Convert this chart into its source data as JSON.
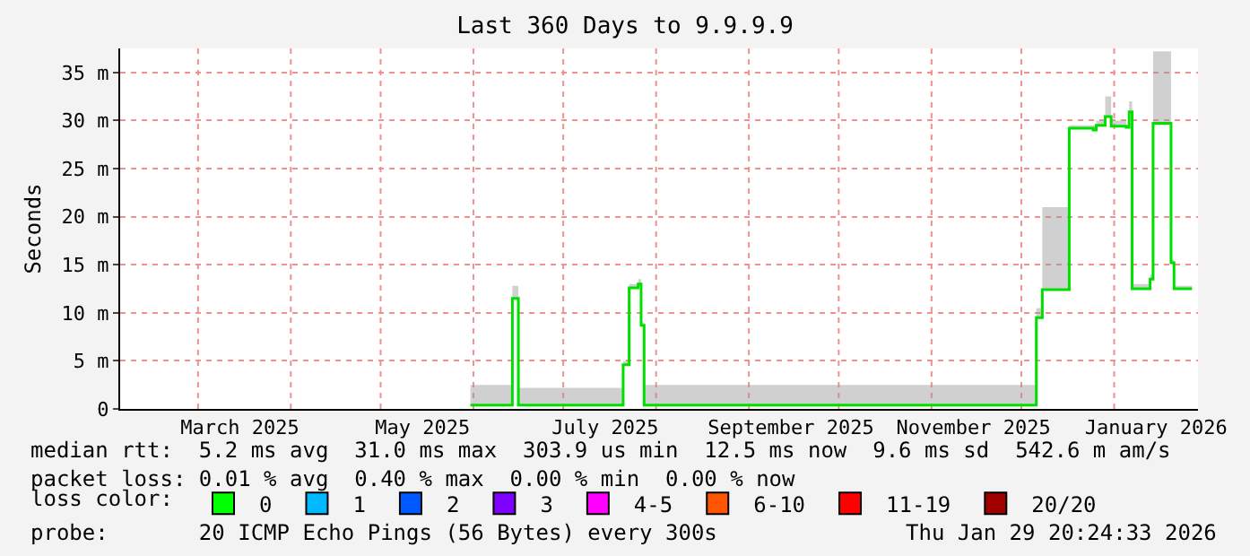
{
  "chart_data": {
    "type": "step",
    "title": "Last 360 Days to 9.9.9.9",
    "ylabel": "Seconds",
    "x": [
      "2025-05-31",
      "2025-06-14",
      "2025-06-16",
      "2025-07-21",
      "2025-07-23",
      "2025-07-26",
      "2025-07-27",
      "2025-07-28",
      "2025-12-06",
      "2025-12-08",
      "2025-12-17",
      "2025-12-25",
      "2025-12-26",
      "2025-12-29",
      "2025-12-31",
      "2026-01-05",
      "2026-01-06",
      "2026-01-07",
      "2026-01-13",
      "2026-01-14",
      "2026-01-20",
      "2026-01-21",
      "2026-01-27"
    ],
    "series": [
      {
        "color": "#00e000",
        "values": [
          0.4,
          11.5,
          0.4,
          4.6,
          12.6,
          13,
          8.7,
          0.4,
          9.5,
          12.4,
          29.2,
          29,
          29.5,
          30.4,
          29.4,
          29.3,
          30.9,
          12.5,
          13.5,
          29.7,
          15.2,
          12.5,
          12.5
        ],
        "lower": [
          0.4,
          11.5,
          0.4,
          4.6,
          12.6,
          13,
          8.7,
          0.4,
          9.5,
          12.4,
          29.2,
          29,
          29.5,
          30.4,
          29.4,
          29.3,
          30.9,
          12.5,
          13.5,
          29.7,
          15.2,
          12.5,
          12.5
        ],
        "upper": [
          2.5,
          12.8,
          2.2,
          5,
          13,
          13.5,
          9,
          2.5,
          10.5,
          21,
          29.5,
          29.5,
          30,
          32.5,
          30,
          29.5,
          32,
          13,
          14,
          37.2,
          15.5,
          12.8,
          12.8
        ]
      },
      {
        "type": "bar",
        "name": "0",
        "color": "#00ff00",
        "values": [
          null,
          null,
          null,
          null,
          null,
          null,
          null,
          null,
          null,
          null,
          null,
          null,
          null,
          null,
          null,
          null,
          null,
          null,
          null,
          null,
          null,
          null,
          null
        ]
      },
      {
        "type": "bar",
        "name": "1",
        "color": "#00b8ff",
        "values": [
          null,
          null,
          null,
          null,
          null,
          null,
          null,
          null,
          null,
          null,
          null,
          null,
          null,
          null,
          null,
          null,
          null,
          null,
          null,
          null,
          null,
          null,
          null
        ]
      },
      {
        "type": "bar",
        "name": "2",
        "color": "#0059ff",
        "values": [
          null,
          null,
          null,
          null,
          null,
          null,
          null,
          null,
          null,
          null,
          null,
          null,
          null,
          null,
          null,
          null,
          null,
          null,
          null,
          null,
          null,
          null,
          null
        ]
      },
      {
        "type": "bar",
        "name": "3",
        "color": "#7e00ff",
        "values": [
          null,
          null,
          null,
          null,
          null,
          null,
          null,
          null,
          null,
          null,
          null,
          null,
          null,
          null,
          null,
          null,
          null,
          null,
          null,
          null,
          null,
          null,
          null
        ]
      },
      {
        "type": "bar",
        "name": "4-5",
        "color": "#ff00ff",
        "values": [
          null,
          null,
          null,
          null,
          null,
          null,
          null,
          null,
          null,
          null,
          null,
          null,
          null,
          null,
          null,
          null,
          null,
          null,
          null,
          null,
          null,
          null,
          null
        ]
      },
      {
        "type": "bar",
        "name": "6-10",
        "color": "#ff5500",
        "values": [
          null,
          null,
          null,
          null,
          null,
          null,
          null,
          null,
          null,
          null,
          null,
          null,
          null,
          null,
          null,
          null,
          null,
          null,
          null,
          null,
          null,
          null,
          null
        ]
      },
      {
        "type": "bar",
        "name": "11-19",
        "color": "#ff0000",
        "values": [
          null,
          null,
          null,
          null,
          null,
          null,
          null,
          null,
          null,
          null,
          null,
          null,
          null,
          null,
          null,
          null,
          null,
          null,
          null,
          null,
          null,
          null,
          null
        ]
      },
      {
        "type": "bar",
        "name": "20/20",
        "color": "#a10000",
        "values": [
          null,
          null,
          null,
          null,
          null,
          null,
          null,
          null,
          null,
          null,
          null,
          null,
          null,
          null,
          null,
          null,
          null,
          null,
          null,
          null,
          null,
          null,
          null
        ]
      }
    ],
    "legend_title": "loss color:",
    "legend": "bottom",
    "xlim": [
      "2025-02-03",
      "2026-01-29"
    ],
    "xticks": [
      {
        "value": "2025-03-01",
        "label": null
      },
      {
        "value": "2025-03-15",
        "label": "March 2025"
      },
      {
        "value": "2025-04-01",
        "label": null
      },
      {
        "value": "2025-05-01",
        "label": null
      },
      {
        "value": "2025-05-15",
        "label": "May 2025"
      },
      {
        "value": "2025-06-01",
        "label": null
      },
      {
        "value": "2025-07-01",
        "label": null
      },
      {
        "value": "2025-07-15",
        "label": "July 2025"
      },
      {
        "value": "2025-08-01",
        "label": null
      },
      {
        "value": "2025-09-01",
        "label": null
      },
      {
        "value": "2025-09-15",
        "label": "September 2025"
      },
      {
        "value": "2025-10-01",
        "label": null
      },
      {
        "value": "2025-11-01",
        "label": null
      },
      {
        "value": "2025-11-15",
        "label": "November 2025"
      },
      {
        "value": "2025-12-01",
        "label": null
      },
      {
        "value": "2026-01-01",
        "label": null
      },
      {
        "value": "2026-01-15",
        "label": "January 2026"
      }
    ],
    "ylim": [
      0,
      37.5
    ],
    "yticks": [
      0,
      {
        "value": 5,
        "label": "5 m"
      },
      {
        "value": 10,
        "label": "10 m"
      },
      {
        "value": 15,
        "label": "15 m"
      },
      {
        "value": 20,
        "label": "20 m"
      },
      {
        "value": 25,
        "label": "25 m"
      },
      {
        "value": 30,
        "label": "30 m"
      },
      {
        "value": 35,
        "label": "35 m"
      }
    ],
    "grid": true,
    "marker": "none",
    "line_style": "solid",
    "annotations": [
      "median rtt:  5.2 ms avg  31.0 ms max  303.9 us min  12.5 ms now  9.6 ms sd  542.6 m am/s",
      "packet loss: 0.01 % avg  0.40 % max  0.00 % min  0.00 % now",
      "probe:       20 ICMP Echo Pings (56 Bytes) every 300s",
      "Thu Jan 29 20:24:33 2026"
    ]
  }
}
